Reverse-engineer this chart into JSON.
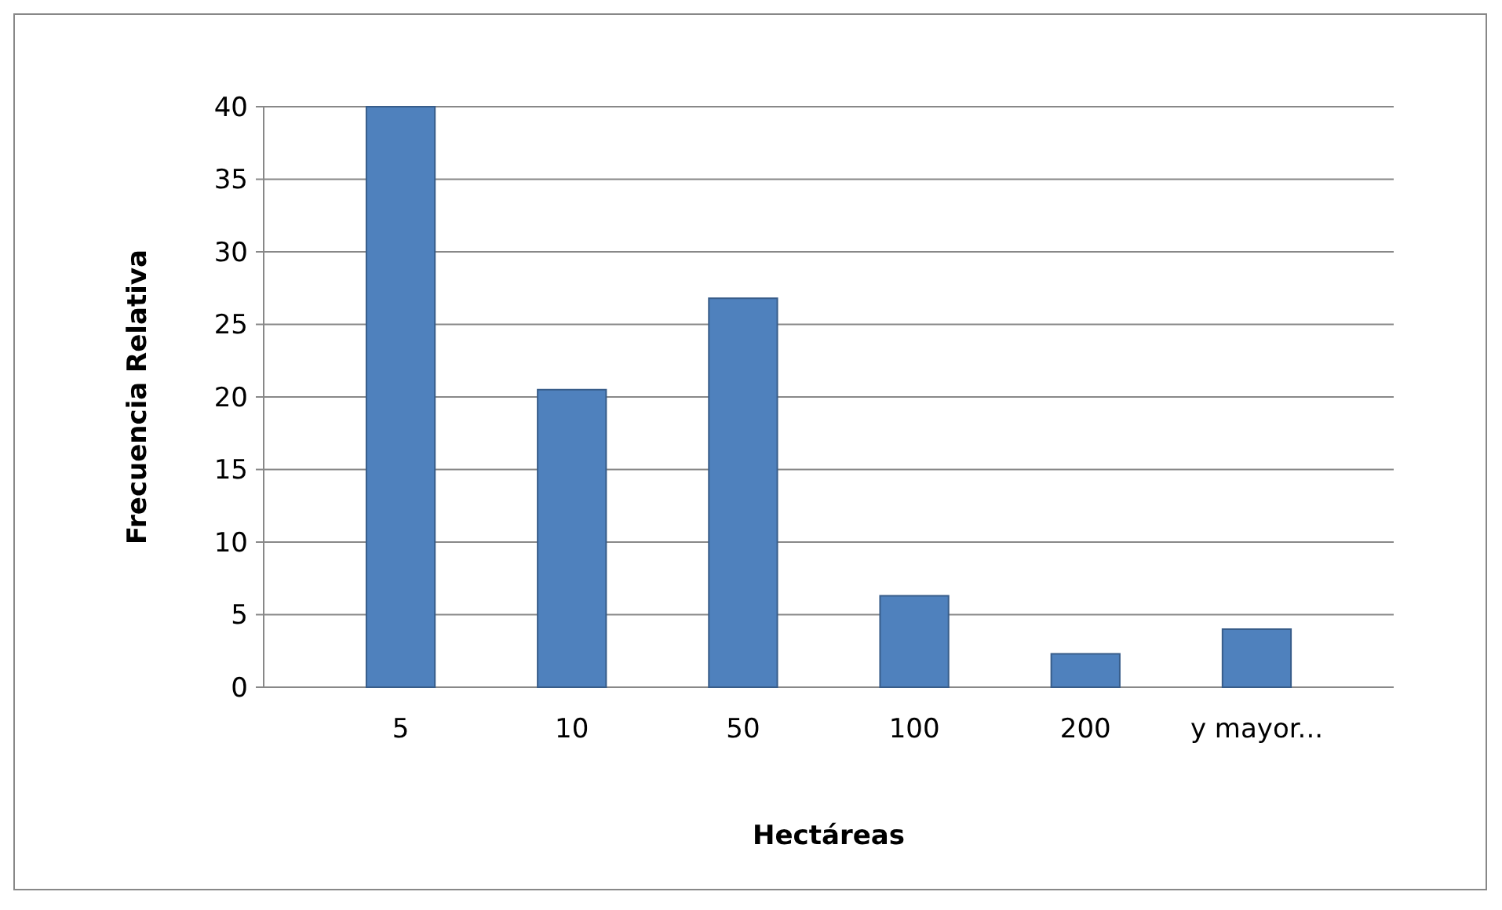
{
  "chart_data": {
    "type": "bar",
    "xlabel": "Hectáreas",
    "ylabel": "Frecuencia Relativa",
    "categories": [
      "5",
      "10",
      "50",
      "100",
      "200",
      "y mayor..."
    ],
    "values": [
      40,
      20.5,
      26.8,
      6.3,
      2.3,
      4.0
    ],
    "color": "#4f81bd",
    "ylim": [
      0,
      40
    ],
    "yticks": [
      0,
      5,
      10,
      15,
      20,
      25,
      30,
      35,
      40
    ],
    "grid": "y"
  }
}
